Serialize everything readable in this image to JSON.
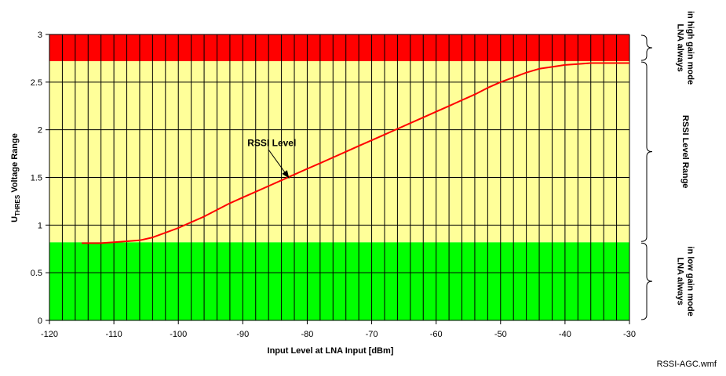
{
  "chart_data": {
    "type": "line",
    "xlabel": "Input Level at LNA Input [dBm]",
    "ylabel_main": "U",
    "ylabel_sub": "THRES",
    "ylabel_rest": " Voltage Range",
    "xlim": [
      -120,
      -30
    ],
    "ylim": [
      0,
      3
    ],
    "x_ticks": [
      -120,
      -110,
      -100,
      -90,
      -80,
      -70,
      -60,
      -50,
      -40,
      -30
    ],
    "y_ticks": [
      0,
      0.5,
      1,
      1.5,
      2,
      2.5,
      3
    ],
    "x_grid_step": 2,
    "grid": true,
    "bands": [
      {
        "from": 0,
        "to": 0.82,
        "color": "#00ff00"
      },
      {
        "from": 0.82,
        "to": 2.72,
        "color": "#ffff99"
      },
      {
        "from": 2.72,
        "to": 3.0,
        "color": "#ff0000"
      }
    ],
    "band_labels": [
      {
        "lines": [
          "LNA always",
          "in high gain mode"
        ],
        "from": 2.72,
        "to": 3.0
      },
      {
        "lines": [
          "RSSI Level Range"
        ],
        "from": 0.82,
        "to": 2.72
      },
      {
        "lines": [
          "LNA always",
          "in low gain mode"
        ],
        "from": 0.0,
        "to": 0.82
      }
    ],
    "series": [
      {
        "color": "#ff0000",
        "x": [
          -115,
          -112,
          -110,
          -108,
          -106,
          -104,
          -102,
          -100,
          -98,
          -96,
          -94,
          -92,
          -90,
          -88,
          -86,
          -84,
          -82,
          -80,
          -78,
          -76,
          -74,
          -72,
          -70,
          -68,
          -66,
          -64,
          -62,
          -60,
          -58,
          -56,
          -54,
          -52,
          -50,
          -48,
          -46,
          -44,
          -42,
          -40,
          -38,
          -36,
          -34,
          -32,
          -30
        ],
        "y": [
          0.81,
          0.81,
          0.82,
          0.83,
          0.84,
          0.87,
          0.92,
          0.97,
          1.03,
          1.09,
          1.16,
          1.23,
          1.29,
          1.35,
          1.41,
          1.47,
          1.53,
          1.59,
          1.65,
          1.71,
          1.77,
          1.83,
          1.89,
          1.95,
          2.01,
          2.07,
          2.13,
          2.19,
          2.25,
          2.31,
          2.37,
          2.44,
          2.5,
          2.55,
          2.6,
          2.64,
          2.66,
          2.68,
          2.69,
          2.7,
          2.7,
          2.7,
          2.7
        ]
      }
    ],
    "annotation": {
      "text": "RSSI Level",
      "text_x": -85.5,
      "text_y": 1.83,
      "arrow_to_x": -82.8,
      "arrow_to_y": 1.49
    }
  },
  "footer": {
    "filename": "RSSI-AGC.wmf"
  }
}
